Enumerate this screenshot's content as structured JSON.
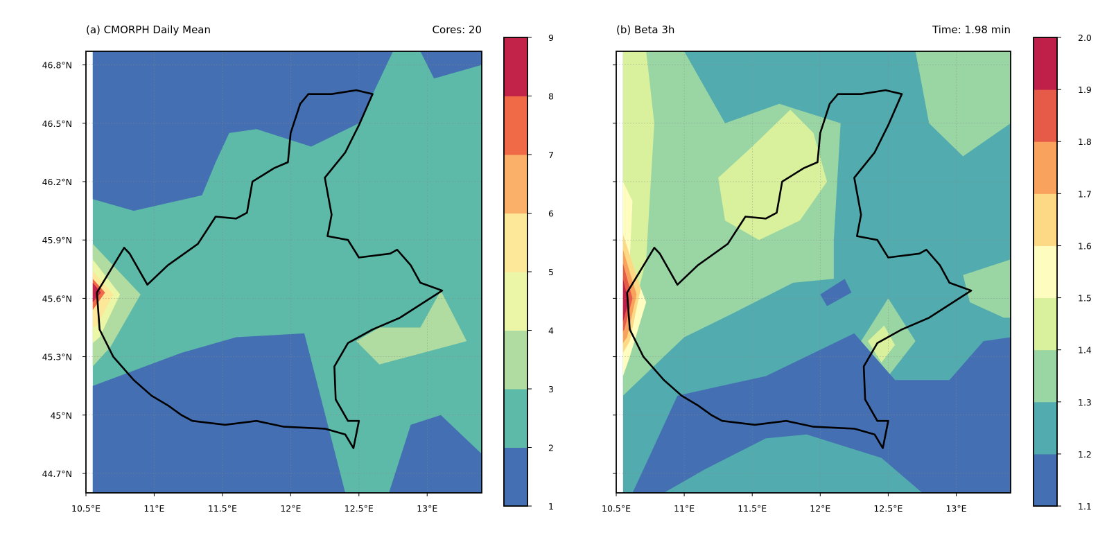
{
  "chart_data": [
    {
      "type": "contour-map",
      "title_left": "(a) CMORPH Daily Mean",
      "title_right": "Cores: 20",
      "x_ticks": [
        "10.5°E",
        "11°E",
        "11.5°E",
        "12°E",
        "12.5°E",
        "13°E"
      ],
      "y_ticks": [
        "46.8°N",
        "46.5°N",
        "46.2°N",
        "45.9°N",
        "45.6°N",
        "45.3°N",
        "45°N",
        "44.7°N"
      ],
      "xlim": [
        10.5,
        13.4
      ],
      "ylim": [
        44.6,
        46.87
      ],
      "data_xlim": [
        10.55,
        13.4
      ],
      "colorbar": {
        "levels": [
          1,
          2,
          3,
          4,
          5,
          6,
          7,
          8,
          9
        ],
        "colors": [
          "#4470b3",
          "#5db9a8",
          "#b0dba1",
          "#ebf6a6",
          "#fde89a",
          "#fbb06a",
          "#f06a47",
          "#c22348"
        ]
      },
      "regions": [
        {
          "level": 1,
          "name": "south-band",
          "points": [
            [
              10.55,
              44.6
            ],
            [
              10.55,
              45.15
            ],
            [
              11.2,
              45.32
            ],
            [
              11.6,
              45.4
            ],
            [
              12.1,
              45.42
            ],
            [
              12.4,
              44.6
            ]
          ]
        },
        {
          "level": 1,
          "name": "north-west",
          "points": [
            [
              10.55,
              46.11
            ],
            [
              10.85,
              46.05
            ],
            [
              11.35,
              46.13
            ],
            [
              11.45,
              46.3
            ],
            [
              11.55,
              46.45
            ],
            [
              11.75,
              46.47
            ],
            [
              12.15,
              46.38
            ],
            [
              12.5,
              46.5
            ],
            [
              12.75,
              46.87
            ],
            [
              10.55,
              46.87
            ]
          ]
        },
        {
          "level": 1,
          "name": "north-east-corner",
          "points": [
            [
              12.95,
              46.87
            ],
            [
              13.4,
              46.87
            ],
            [
              13.4,
              46.8
            ],
            [
              13.05,
              46.73
            ]
          ]
        },
        {
          "level": 1,
          "name": "south-east",
          "points": [
            [
              12.72,
              44.6
            ],
            [
              12.88,
              44.95
            ],
            [
              13.1,
              45.0
            ],
            [
              13.4,
              44.8
            ],
            [
              13.4,
              44.6
            ]
          ]
        },
        {
          "level": 3,
          "name": "east-patch",
          "points": [
            [
              12.48,
              45.38
            ],
            [
              12.65,
              45.45
            ],
            [
              12.95,
              45.45
            ],
            [
              13.1,
              45.64
            ],
            [
              13.29,
              45.38
            ],
            [
              12.65,
              45.26
            ]
          ]
        },
        {
          "level": 3,
          "name": "west-spot",
          "points": [
            [
              10.55,
              45.88
            ],
            [
              10.9,
              45.62
            ],
            [
              10.68,
              45.35
            ],
            [
              10.55,
              45.25
            ]
          ]
        },
        {
          "level": 4,
          "name": "west-spot",
          "points": [
            [
              10.55,
              45.8
            ],
            [
              10.75,
              45.62
            ],
            [
              10.6,
              45.4
            ],
            [
              10.55,
              45.37
            ]
          ]
        },
        {
          "level": 5,
          "name": "west-spot",
          "points": [
            [
              10.55,
              45.74
            ],
            [
              10.7,
              45.62
            ],
            [
              10.58,
              45.46
            ],
            [
              10.55,
              45.45
            ]
          ]
        },
        {
          "level": 7,
          "name": "west-spot",
          "points": [
            [
              10.55,
              45.7
            ],
            [
              10.64,
              45.63
            ],
            [
              10.55,
              45.54
            ]
          ]
        },
        {
          "level": 8,
          "name": "west-spot",
          "points": [
            [
              10.55,
              45.68
            ],
            [
              10.61,
              45.63
            ],
            [
              10.55,
              45.58
            ]
          ]
        }
      ]
    },
    {
      "type": "contour-map",
      "title_left": "(b) Beta 3h",
      "title_right": "Time: 1.98 min",
      "x_ticks": [
        "10.5°E",
        "11°E",
        "11.5°E",
        "12°E",
        "12.5°E",
        "13°E"
      ],
      "y_ticks": [
        "46.8°N",
        "46.5°N",
        "46.2°N",
        "45.9°N",
        "45.6°N",
        "45.3°N",
        "45°N",
        "44.7°N"
      ],
      "xlim": [
        10.5,
        13.4
      ],
      "ylim": [
        44.6,
        46.87
      ],
      "data_xlim": [
        10.55,
        13.4
      ],
      "colorbar": {
        "levels": [
          1.1,
          1.2,
          1.3,
          1.4,
          1.5,
          1.6,
          1.7,
          1.8,
          1.9,
          2.0
        ],
        "colors": [
          "#4470b3",
          "#52abae",
          "#9ad6a4",
          "#d9f09d",
          "#fefdbf",
          "#fdd985",
          "#f9a25e",
          "#e65b47",
          "#bf2049"
        ]
      },
      "regions": [
        {
          "level": 1.3,
          "name": "wide",
          "points": [
            [
              10.55,
              46.87
            ],
            [
              11.0,
              46.87
            ],
            [
              11.3,
              46.5
            ],
            [
              11.7,
              46.6
            ],
            [
              12.15,
              46.5
            ],
            [
              12.1,
              45.9
            ],
            [
              12.1,
              45.7
            ],
            [
              11.8,
              45.68
            ],
            [
              11.35,
              45.52
            ],
            [
              11.0,
              45.4
            ],
            [
              10.55,
              45.1
            ]
          ]
        },
        {
          "level": 1.3,
          "name": "north-east",
          "points": [
            [
              12.7,
              46.87
            ],
            [
              13.4,
              46.87
            ],
            [
              13.4,
              46.5
            ],
            [
              13.05,
              46.33
            ],
            [
              12.8,
              46.5
            ]
          ]
        },
        {
          "level": 1.3,
          "name": "east-edge",
          "points": [
            [
              13.4,
              45.8
            ],
            [
              13.05,
              45.72
            ],
            [
              13.1,
              45.58
            ],
            [
              13.35,
              45.5
            ],
            [
              13.4,
              45.5
            ]
          ]
        },
        {
          "level": 1.3,
          "name": "center-diamond",
          "points": [
            [
              12.3,
              45.38
            ],
            [
              12.5,
              45.6
            ],
            [
              12.7,
              45.38
            ],
            [
              12.5,
              45.2
            ]
          ]
        },
        {
          "level": 1.4,
          "name": "west-strip",
          "points": [
            [
              10.55,
              46.87
            ],
            [
              10.72,
              46.87
            ],
            [
              10.78,
              46.5
            ],
            [
              10.72,
              45.8
            ],
            [
              10.65,
              45.6
            ],
            [
              10.55,
              45.3
            ]
          ]
        },
        {
          "level": 1.4,
          "name": "center-plume",
          "points": [
            [
              11.3,
              46.0
            ],
            [
              11.55,
              45.9
            ],
            [
              11.85,
              46.0
            ],
            [
              12.05,
              46.2
            ],
            [
              11.95,
              46.45
            ],
            [
              11.78,
              46.57
            ],
            [
              11.5,
              46.38
            ],
            [
              11.25,
              46.22
            ]
          ]
        },
        {
          "level": 1.4,
          "name": "small-diamond",
          "points": [
            [
              12.35,
              45.38
            ],
            [
              12.47,
              45.46
            ],
            [
              12.55,
              45.36
            ],
            [
              12.45,
              45.27
            ]
          ]
        },
        {
          "level": 1.5,
          "name": "west-strip",
          "points": [
            [
              10.55,
              46.2
            ],
            [
              10.62,
              46.1
            ],
            [
              10.6,
              45.8
            ],
            [
              10.72,
              45.58
            ],
            [
              10.6,
              45.3
            ],
            [
              10.55,
              45.2
            ]
          ]
        },
        {
          "level": 1.6,
          "name": "west-spot",
          "points": [
            [
              10.55,
              45.93
            ],
            [
              10.68,
              45.65
            ],
            [
              10.6,
              45.38
            ],
            [
              10.55,
              45.32
            ]
          ]
        },
        {
          "level": 1.7,
          "name": "west-spot",
          "points": [
            [
              10.55,
              45.85
            ],
            [
              10.65,
              45.62
            ],
            [
              10.58,
              45.4
            ],
            [
              10.55,
              45.37
            ]
          ]
        },
        {
          "level": 1.8,
          "name": "west-spot",
          "points": [
            [
              10.55,
              45.78
            ],
            [
              10.62,
              45.6
            ],
            [
              10.56,
              45.44
            ],
            [
              10.55,
              45.43
            ]
          ]
        },
        {
          "level": 1.9,
          "name": "west-spot",
          "points": [
            [
              10.55,
              45.7
            ],
            [
              10.59,
              45.58
            ],
            [
              10.55,
              45.48
            ]
          ]
        },
        {
          "level": 1.1,
          "name": "south-mass",
          "points": [
            [
              10.62,
              44.6
            ],
            [
              10.7,
              44.72
            ],
            [
              10.95,
              45.1
            ],
            [
              11.6,
              45.2
            ],
            [
              12.25,
              45.42
            ],
            [
              12.55,
              45.18
            ],
            [
              12.95,
              45.18
            ],
            [
              13.2,
              45.38
            ],
            [
              13.4,
              45.4
            ],
            [
              13.4,
              44.6
            ],
            [
              12.75,
              44.6
            ],
            [
              12.45,
              44.78
            ],
            [
              11.9,
              44.9
            ],
            [
              11.6,
              44.88
            ],
            [
              11.15,
              44.72
            ],
            [
              10.85,
              44.6
            ]
          ]
        },
        {
          "level": 1.1,
          "name": "spot",
          "points": [
            [
              12.0,
              45.62
            ],
            [
              12.18,
              45.7
            ],
            [
              12.23,
              45.63
            ],
            [
              12.05,
              45.56
            ]
          ]
        }
      ]
    }
  ],
  "outline": [
    [
      10.58,
      45.63
    ],
    [
      10.78,
      45.86
    ],
    [
      10.82,
      45.83
    ],
    [
      10.95,
      45.67
    ],
    [
      11.1,
      45.77
    ],
    [
      11.32,
      45.88
    ],
    [
      11.45,
      46.02
    ],
    [
      11.6,
      46.01
    ],
    [
      11.68,
      46.04
    ],
    [
      11.72,
      46.2
    ],
    [
      11.88,
      46.27
    ],
    [
      11.98,
      46.3
    ],
    [
      12.0,
      46.45
    ],
    [
      12.07,
      46.6
    ],
    [
      12.13,
      46.65
    ],
    [
      12.3,
      46.65
    ],
    [
      12.48,
      46.67
    ],
    [
      12.6,
      46.65
    ],
    [
      12.5,
      46.49
    ],
    [
      12.4,
      46.35
    ],
    [
      12.25,
      46.22
    ],
    [
      12.3,
      46.03
    ],
    [
      12.27,
      45.92
    ],
    [
      12.42,
      45.9
    ],
    [
      12.5,
      45.81
    ],
    [
      12.73,
      45.83
    ],
    [
      12.78,
      45.85
    ],
    [
      12.88,
      45.77
    ],
    [
      12.95,
      45.68
    ],
    [
      13.11,
      45.64
    ],
    [
      12.8,
      45.5
    ],
    [
      12.6,
      45.44
    ],
    [
      12.42,
      45.37
    ],
    [
      12.32,
      45.25
    ],
    [
      12.33,
      45.08
    ],
    [
      12.42,
      44.97
    ],
    [
      12.5,
      44.97
    ],
    [
      12.46,
      44.83
    ],
    [
      12.4,
      44.9
    ],
    [
      12.25,
      44.93
    ],
    [
      11.95,
      44.94
    ],
    [
      11.75,
      44.97
    ],
    [
      11.52,
      44.95
    ],
    [
      11.28,
      44.97
    ],
    [
      11.2,
      45.0
    ],
    [
      11.1,
      45.05
    ],
    [
      10.98,
      45.1
    ],
    [
      10.85,
      45.18
    ],
    [
      10.7,
      45.3
    ],
    [
      10.6,
      45.44
    ]
  ],
  "ticks_x_values": [
    10.5,
    11.0,
    11.5,
    12.0,
    12.5,
    13.0
  ],
  "ticks_y_values": [
    46.8,
    46.5,
    46.2,
    45.9,
    45.6,
    45.3,
    45.0,
    44.7
  ]
}
